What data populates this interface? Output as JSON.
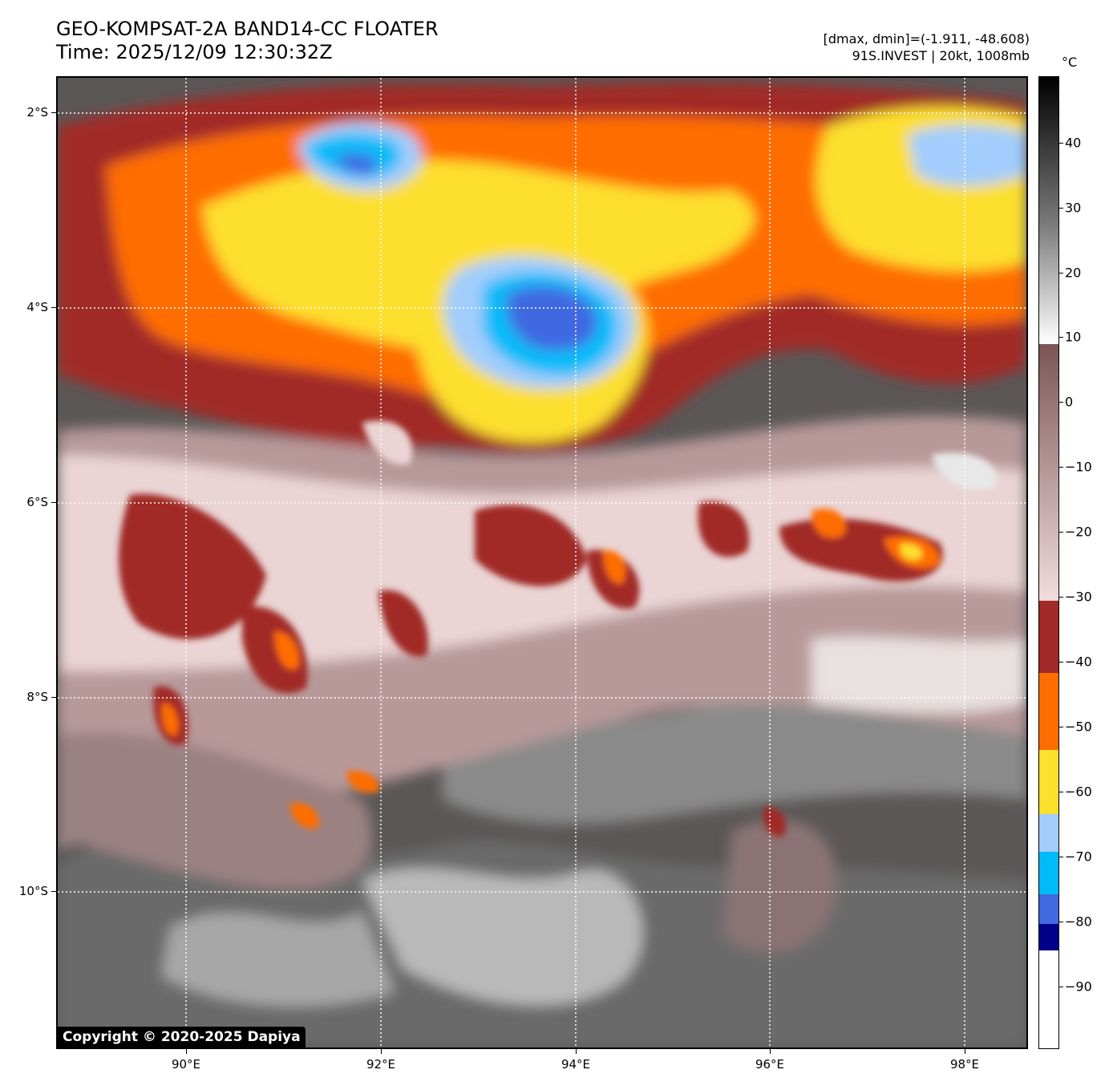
{
  "title": {
    "line1": "GEO-KOMPSAT-2A BAND14-CC FLOATER",
    "line2": "Time: 2025/12/09 12:30:32Z"
  },
  "meta": {
    "line1": "[dmax, dmin]=(-1.911, -48.608)",
    "line2": "91S.INVEST | 20kt, 1008mb"
  },
  "copyright": "Copyright © 2020-2025 Dapiya",
  "axes": {
    "lat_ticks": [
      "2°S",
      "4°S",
      "6°S",
      "8°S",
      "10°S"
    ],
    "lon_ticks": [
      "90°E",
      "92°E",
      "94°E",
      "96°E",
      "98°E"
    ]
  },
  "colorbar": {
    "unit": "°C",
    "labels": [
      "40",
      "30",
      "20",
      "10",
      "0",
      "−10",
      "−20",
      "−30",
      "−40",
      "−50",
      "−60",
      "−70",
      "−80",
      "−90"
    ],
    "colors": {
      "black": "#000000",
      "gray_mid": "#7a7a7a",
      "white": "#ffffff",
      "brown": "#7b5556",
      "pink": "#f2dcdc",
      "dark_red": "#a12a28",
      "orange": "#fe6d00",
      "yellow": "#fddf2e",
      "light_blue": "#a2cdfc",
      "cyan": "#00bbf9",
      "blue": "#4169e1",
      "navy": "#00008b"
    }
  }
}
